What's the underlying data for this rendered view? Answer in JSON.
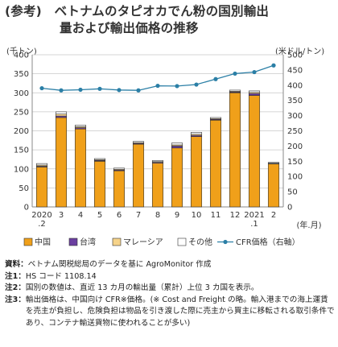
{
  "title_line1": "(参考)　ベトナムのタピオカでん粉の国別輸出",
  "title_line2": "量および輸出価格の推移",
  "left_unit": "(千トン)",
  "right_unit": "(米ドル/トン)",
  "x_unit": "(年.月)",
  "notes": [
    {
      "key": "資料：",
      "text": "ベトナム関税総局のデータを基に AgroMonitor 作成"
    },
    {
      "key": "注1：",
      "text": "HS コード 1108.14"
    },
    {
      "key": "注2：",
      "text": "国別の数値は、直近 13 カ月の輸出量（累計）上位 3 カ国を表示。"
    },
    {
      "key": "注3：",
      "text": "輸出価格は、中国向け CFR※価格。(※ Cost and Freight の略。輸入港までの海上運賃を売主が負担し、危険負担は物品を引き渡した際に売主から買主に移転される取引条件であり、コンテナ輸送貨物に使われることが多い)"
    }
  ],
  "colors": {
    "china": "#f0a01a",
    "taiwan": "#6b3fa0",
    "malaysia": "#f6d38a",
    "other": "#ffffff",
    "cfr": "#2b7fa6",
    "grid": "#c8c8c8"
  },
  "chart_data": {
    "type": "bar",
    "stacked": true,
    "categories": [
      [
        "2020",
        ".2"
      ],
      [
        "3"
      ],
      [
        "4"
      ],
      [
        "5"
      ],
      [
        "6"
      ],
      [
        "7"
      ],
      [
        "8"
      ],
      [
        "9"
      ],
      [
        "10"
      ],
      [
        "11"
      ],
      [
        "12"
      ],
      [
        "2021",
        ".1"
      ],
      [
        "2"
      ]
    ],
    "series": [
      {
        "name": "中国",
        "values": [
          105,
          235,
          205,
          120,
          95,
          165,
          115,
          155,
          185,
          228,
          300,
          293,
          113
        ]
      },
      {
        "name": "台湾",
        "values": [
          2,
          4,
          3,
          2,
          2,
          2,
          2,
          5,
          3,
          2,
          2,
          5,
          1
        ]
      },
      {
        "name": "マレーシア",
        "values": [
          3,
          5,
          3,
          2,
          2,
          2,
          2,
          3,
          3,
          2,
          2,
          3,
          1
        ]
      },
      {
        "name": "その他",
        "values": [
          4,
          6,
          4,
          3,
          3,
          3,
          3,
          5,
          5,
          3,
          3,
          4,
          2
        ]
      }
    ],
    "line_series": {
      "name": "CFR価格（右軸）",
      "axis": "right",
      "values": [
        390,
        383,
        385,
        388,
        384,
        383,
        398,
        397,
        402,
        420,
        438,
        443,
        465
      ]
    },
    "y_left": {
      "min": 0,
      "max": 400,
      "step": 50,
      "ticks": [
        "0",
        "50",
        "100",
        "150",
        "200",
        "250",
        "300",
        "350",
        "400"
      ]
    },
    "y_right": {
      "min": 0,
      "max": 500,
      "step": 50,
      "ticks": [
        "0",
        "50",
        "100",
        "150",
        "200",
        "250",
        "300",
        "350",
        "400",
        "450",
        "500"
      ]
    },
    "legend_position": "bottom",
    "grid": true
  }
}
